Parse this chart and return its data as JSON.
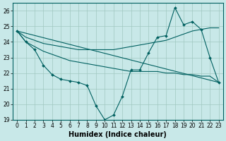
{
  "x": [
    0,
    1,
    2,
    3,
    4,
    5,
    6,
    7,
    8,
    9,
    10,
    11,
    12,
    13,
    14,
    15,
    16,
    17,
    18,
    19,
    20,
    21,
    22,
    23
  ],
  "line1": [
    24.7,
    24.0,
    23.5,
    22.5,
    21.9,
    21.6,
    21.5,
    21.4,
    21.2,
    19.9,
    19.0,
    19.3,
    20.5,
    22.2,
    22.2,
    23.3,
    24.3,
    24.4,
    26.2,
    25.1,
    25.3,
    24.8,
    23.0,
    21.4
  ],
  "line_smooth1": [
    24.7,
    24.0,
    23.7,
    23.4,
    23.2,
    23.0,
    22.8,
    22.7,
    22.6,
    22.5,
    22.4,
    22.3,
    22.2,
    22.1,
    22.1,
    22.1,
    22.1,
    22.0,
    22.0,
    21.9,
    21.9,
    21.8,
    21.8,
    21.4
  ],
  "line_smooth2": [
    24.7,
    24.3,
    24.1,
    23.9,
    23.8,
    23.7,
    23.6,
    23.5,
    23.5,
    23.5,
    23.5,
    23.5,
    23.6,
    23.7,
    23.8,
    23.9,
    24.0,
    24.1,
    24.3,
    24.5,
    24.7,
    24.8,
    24.9,
    24.9
  ],
  "line_straight_y0": 24.7,
  "line_straight_y1": 21.4,
  "bg_color": "#c8e8e8",
  "grid_color": "#a0c8c0",
  "line_color": "#006060",
  "xlabel": "Humidex (Indice chaleur)",
  "ylim": [
    19,
    26.5
  ],
  "xlim": [
    -0.5,
    23.5
  ],
  "yticks": [
    19,
    20,
    21,
    22,
    23,
    24,
    25,
    26
  ],
  "xticks": [
    0,
    1,
    2,
    3,
    4,
    5,
    6,
    7,
    8,
    9,
    10,
    11,
    12,
    13,
    14,
    15,
    16,
    17,
    18,
    19,
    20,
    21,
    22,
    23
  ],
  "tick_fontsize": 5.5,
  "xlabel_fontsize": 7
}
